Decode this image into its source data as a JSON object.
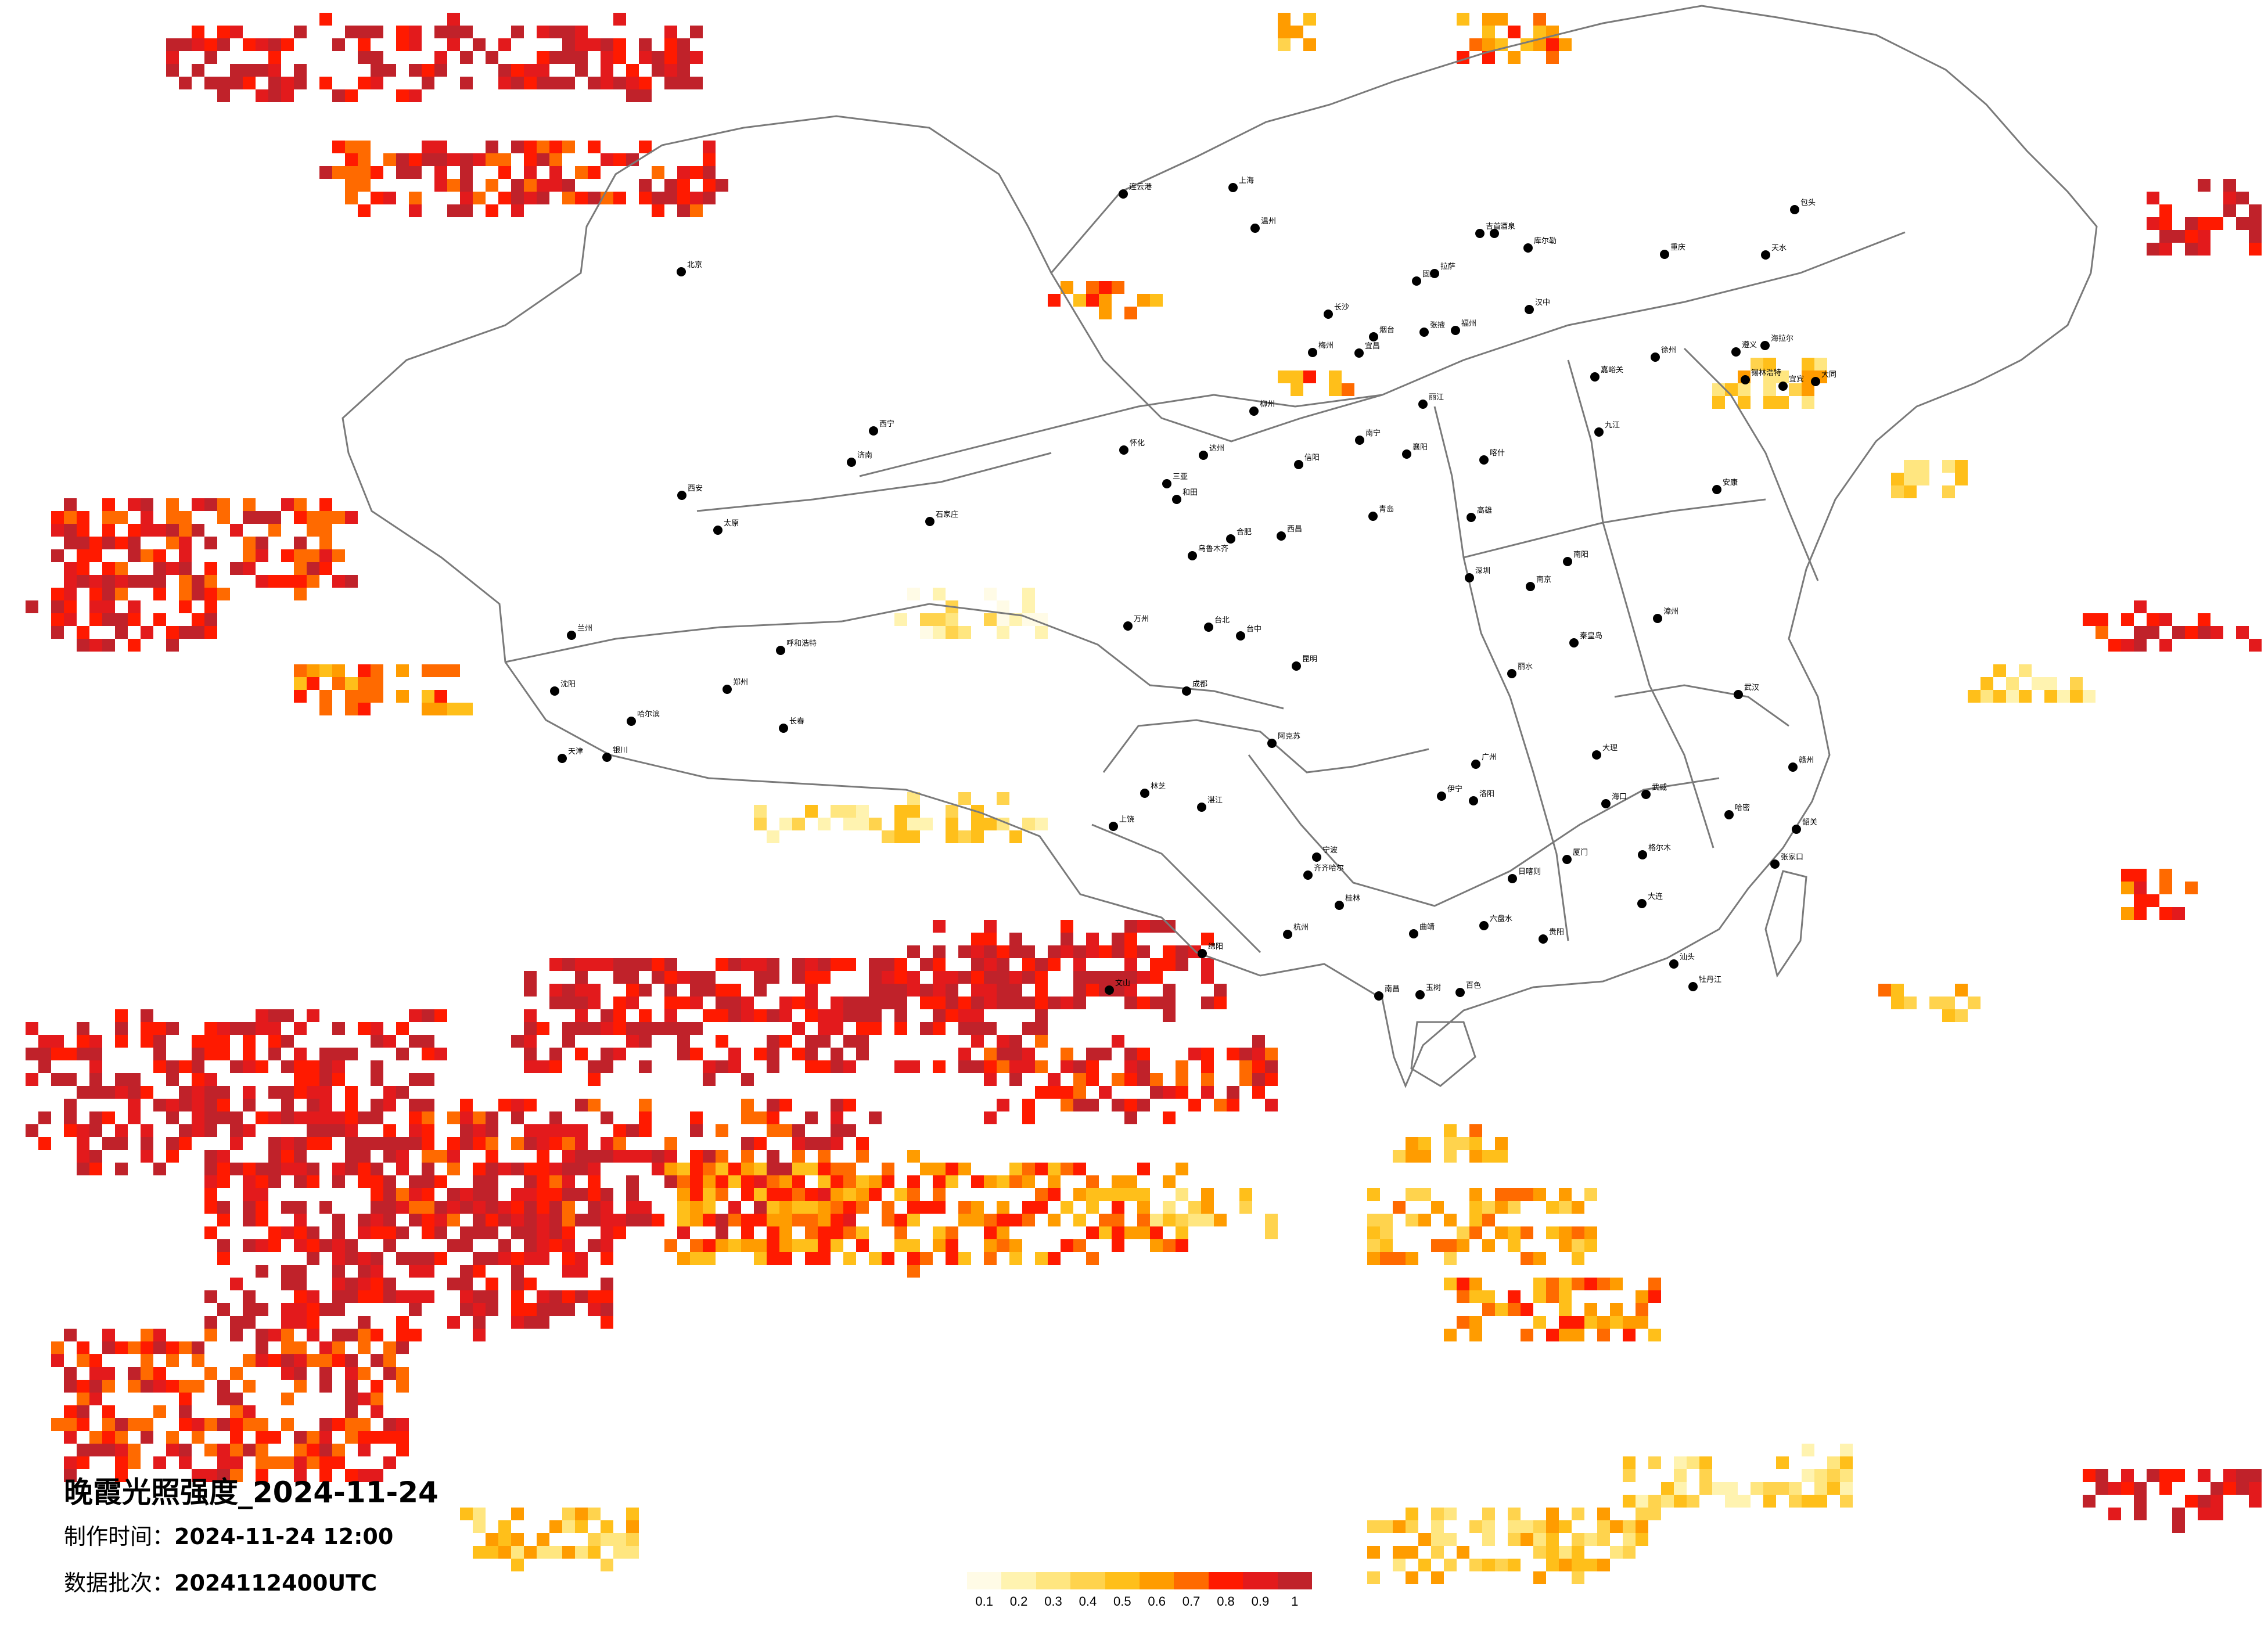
{
  "title": "晚霞光照强度_2024-11-24",
  "issue_time": {
    "label": "制作时间：",
    "value": "2024-11-24 12:00"
  },
  "data_batch": {
    "label": "数据批次：",
    "value": "2024112400UTC"
  },
  "legend": {
    "ticks": [
      "0.1",
      "0.2",
      "0.3",
      "0.4",
      "0.5",
      "0.6",
      "0.7",
      "0.8",
      "0.9",
      "1"
    ],
    "colors": [
      "#fffbe6",
      "#fff3b0",
      "#ffe680",
      "#ffd34d",
      "#ffbf1a",
      "#ff9c00",
      "#ff6a00",
      "#ff1a00",
      "#e31a1c",
      "#c0222a"
    ]
  },
  "colors": {
    "boundary": "#7a7a7a",
    "city_dot": "#000000",
    "background": "#ffffff"
  },
  "cities": [
    "哈尔滨",
    "长春",
    "沈阳",
    "北京",
    "天津",
    "石家庄",
    "太原",
    "呼和浩特",
    "济南",
    "郑州",
    "西安",
    "兰州",
    "西宁",
    "银川",
    "乌鲁木齐",
    "拉萨",
    "成都",
    "重庆",
    "贵阳",
    "昆明",
    "南宁",
    "广州",
    "长沙",
    "武汉",
    "南昌",
    "福州",
    "杭州",
    "南京",
    "合肥",
    "上海",
    "海口",
    "台北",
    "大连",
    "青岛",
    "厦门",
    "深圳",
    "汕头",
    "桂林",
    "柳州",
    "赣州",
    "温州",
    "宁波",
    "徐州",
    "洛阳",
    "襄阳",
    "宜昌",
    "遵义",
    "大理",
    "丽江",
    "喀什",
    "和田",
    "伊宁",
    "哈密",
    "阿克苏",
    "库尔勒",
    "格尔木",
    "日喀则",
    "林芝",
    "玉树",
    "海拉尔",
    "齐齐哈尔",
    "牡丹江",
    "包头",
    "锡林浩特",
    "大同",
    "张家口",
    "秦皇岛",
    "烟台",
    "连云港",
    "湛江",
    "三亚",
    "百色",
    "台中",
    "高雄",
    "酒泉",
    "嘉峪关",
    "张掖",
    "武威",
    "固原",
    "天水",
    "汉中",
    "安康",
    "南阳",
    "信阳",
    "九江",
    "上饶",
    "丽水",
    "漳州",
    "梅州",
    "韶关",
    "怀化",
    "吉首",
    "六盘水",
    "曲靖",
    "文山",
    "西昌",
    "宜宾",
    "绵阳",
    "达州",
    "万州"
  ]
}
